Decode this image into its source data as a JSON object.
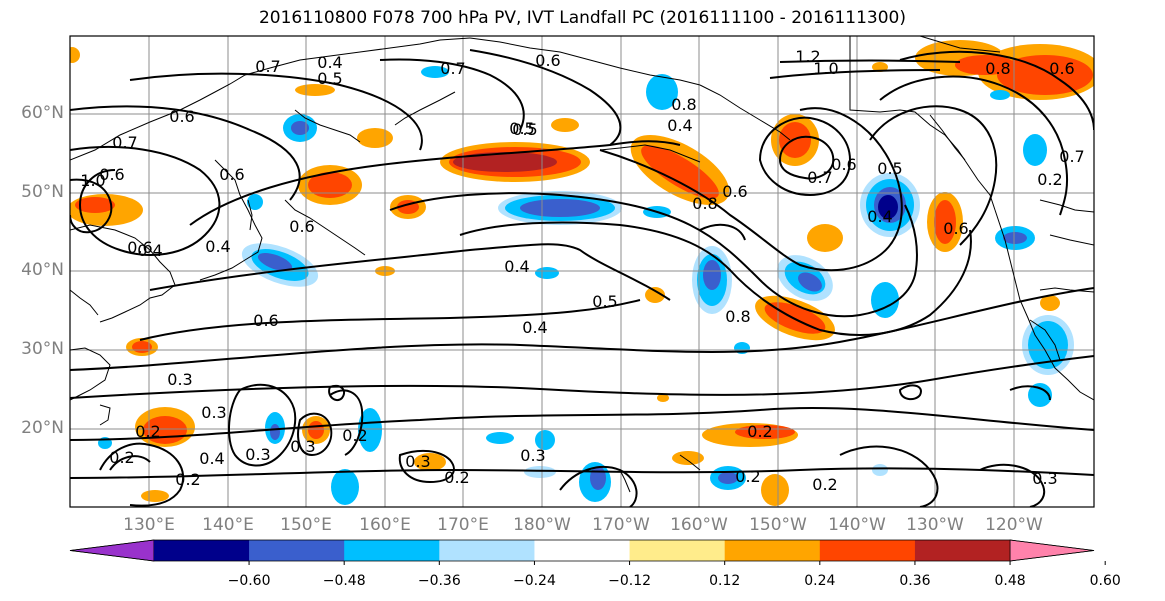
{
  "title": "2016110800 F078 700 hPa PV, IVT Landfall PC (2016111100 - 2016111300)",
  "map": {
    "projection": "plate-carree",
    "lat_labels": [
      "60°N",
      "50°N",
      "40°N",
      "30°N",
      "20°N"
    ],
    "lon_labels": [
      "130°E",
      "140°E",
      "150°E",
      "160°E",
      "170°E",
      "180°W",
      "170°W",
      "160°W",
      "150°W",
      "140°W",
      "130°W",
      "120°W"
    ],
    "contour_labels": [
      "0.7",
      "0.4",
      "0.5",
      "0.7",
      "0.6",
      "0.5",
      "0.6",
      "1.2",
      "1.0",
      "0.8",
      "0.6",
      "0.7",
      "1.0",
      "0.6",
      "0.8",
      "0.4",
      "0.5",
      "0.7",
      "0.6",
      "0.8",
      "0.6",
      "0.6",
      "0.4",
      "0.8",
      "0.6",
      "0.4",
      "0.6",
      "0.7",
      "0.5",
      "0.6",
      "0.4",
      "0.5",
      "0.4",
      "0.4",
      "0.6",
      "0.3",
      "0.3",
      "0.2",
      "0.4",
      "0.3",
      "0.2",
      "0.2",
      "0.3",
      "0.2",
      "0.3",
      "0.3",
      "0.2",
      "0.2",
      "0.2",
      "0.3",
      "0.2",
      "0.2"
    ]
  },
  "colorbar": {
    "ticks": [
      "−0.60",
      "−0.48",
      "−0.36",
      "−0.24",
      "−0.12",
      "0.12",
      "0.24",
      "0.36",
      "0.48",
      "0.60"
    ],
    "colors": [
      "#9932cc",
      "#00008b",
      "#3a5fcd",
      "#00bfff",
      "#b0e2ff",
      "#ffffff",
      "#ffec8b",
      "#ffa500",
      "#ff4500",
      "#b22222",
      "#ff82ab"
    ]
  }
}
